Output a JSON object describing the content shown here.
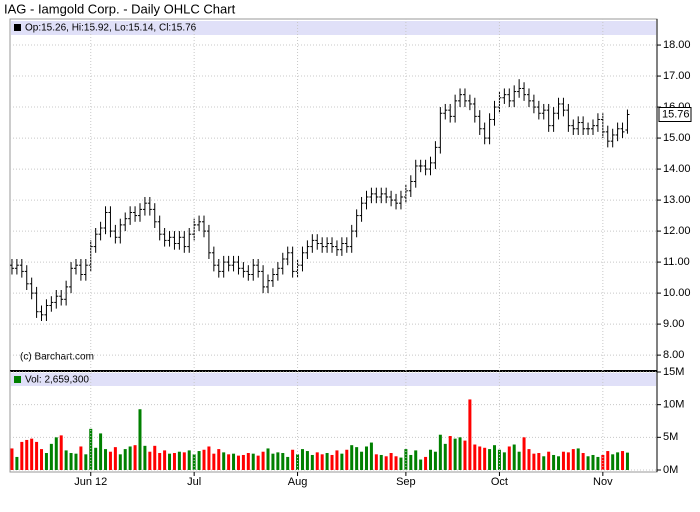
{
  "chart_data": [
    {
      "type": "ohlc",
      "title": "IAG - Iamgold Corp. - Daily OHLC Chart",
      "legend_text": "Op:15.26, Hi:15.92, Lo:15.14, Cl:15.76",
      "annotation": "(c) Barchart.com",
      "color": "#000000",
      "grid": true,
      "xlim": [
        -0.4,
        131
      ],
      "ylim": [
        7.52,
        18.84
      ],
      "yticks": [
        {
          "value": 8,
          "label": "8.00"
        },
        {
          "value": 9,
          "label": "9.00"
        },
        {
          "value": 10,
          "label": "10.00"
        },
        {
          "value": 11,
          "label": "11.00"
        },
        {
          "value": 12,
          "label": "12.00"
        },
        {
          "value": 13,
          "label": "13.00"
        },
        {
          "value": 14,
          "label": "14.00"
        },
        {
          "value": 15,
          "label": "15.00"
        },
        {
          "value": 16,
          "label": "16.00"
        },
        {
          "value": 17,
          "label": "17.00"
        },
        {
          "value": 18,
          "label": "18.00"
        }
      ],
      "open": [
        10.9,
        10.8,
        10.9,
        10.7,
        10.3,
        10.0,
        9.4,
        9.3,
        9.6,
        9.7,
        9.9,
        9.8,
        10.2,
        10.8,
        10.9,
        10.6,
        10.9,
        11.5,
        11.9,
        12.1,
        12.6,
        12.0,
        11.8,
        12.2,
        12.4,
        12.6,
        12.5,
        12.7,
        12.9,
        12.7,
        12.3,
        11.9,
        11.7,
        11.8,
        11.6,
        11.8,
        11.5,
        11.9,
        12.2,
        12.3,
        12.0,
        11.3,
        10.9,
        10.7,
        11.0,
        10.9,
        11.0,
        10.8,
        10.7,
        10.6,
        10.9,
        10.7,
        10.2,
        10.4,
        10.6,
        10.8,
        11.1,
        11.3,
        10.7,
        10.9,
        11.3,
        11.5,
        11.7,
        11.6,
        11.5,
        11.6,
        11.5,
        11.4,
        11.6,
        11.5,
        12.0,
        12.5,
        12.9,
        13.1,
        13.2,
        13.1,
        13.2,
        13.1,
        13.0,
        12.9,
        13.1,
        13.3,
        13.6,
        14.1,
        14.1,
        14.0,
        14.2,
        14.7,
        15.8,
        15.9,
        15.7,
        16.2,
        16.4,
        16.2,
        16.1,
        15.7,
        15.3,
        15.0,
        15.6,
        16.0,
        16.3,
        16.4,
        16.2,
        16.5,
        16.6,
        16.4,
        16.2,
        16.0,
        15.8,
        15.9,
        15.4,
        15.8,
        16.1,
        15.9,
        15.4,
        15.3,
        15.5,
        15.3,
        15.3,
        15.4,
        15.6,
        15.2,
        14.9,
        15.1,
        15.3,
        15.26
      ],
      "high": [
        11.1,
        11.1,
        11.1,
        10.9,
        10.5,
        10.2,
        9.6,
        9.8,
        9.9,
        10.1,
        10.1,
        10.4,
        11.0,
        11.1,
        11.1,
        11.1,
        11.7,
        12.1,
        12.3,
        12.8,
        12.8,
        12.2,
        12.4,
        12.6,
        12.8,
        12.8,
        12.9,
        13.1,
        13.1,
        12.9,
        12.5,
        12.1,
        12.0,
        12.0,
        12.0,
        12.0,
        12.1,
        12.4,
        12.5,
        12.5,
        12.2,
        11.5,
        11.1,
        11.2,
        11.2,
        11.2,
        11.2,
        11.0,
        10.9,
        11.1,
        11.1,
        10.9,
        10.6,
        10.8,
        11.0,
        11.3,
        11.5,
        11.5,
        11.1,
        11.5,
        11.7,
        11.9,
        11.9,
        11.8,
        11.8,
        11.8,
        11.7,
        11.8,
        11.8,
        12.2,
        12.7,
        13.1,
        13.3,
        13.4,
        13.4,
        13.4,
        13.4,
        13.3,
        13.2,
        13.3,
        13.5,
        13.8,
        14.3,
        14.3,
        14.3,
        14.4,
        14.9,
        16.0,
        16.1,
        16.1,
        16.4,
        16.6,
        16.6,
        16.4,
        16.3,
        15.9,
        15.5,
        15.8,
        16.2,
        16.5,
        16.6,
        16.6,
        16.7,
        16.9,
        16.8,
        16.6,
        16.4,
        16.2,
        16.1,
        16.1,
        16.0,
        16.3,
        16.3,
        16.1,
        15.6,
        15.7,
        15.7,
        15.5,
        15.6,
        15.8,
        15.8,
        15.4,
        15.3,
        15.5,
        15.5,
        15.92
      ],
      "low": [
        10.6,
        10.6,
        10.5,
        10.1,
        9.8,
        9.2,
        9.1,
        9.1,
        9.4,
        9.5,
        9.6,
        9.6,
        10.0,
        10.6,
        10.4,
        10.4,
        10.7,
        11.3,
        11.7,
        11.9,
        11.8,
        11.6,
        11.6,
        12.0,
        12.2,
        12.3,
        12.3,
        12.5,
        12.5,
        12.1,
        11.7,
        11.5,
        11.5,
        11.4,
        11.4,
        11.3,
        11.3,
        11.7,
        12.0,
        11.8,
        11.1,
        10.7,
        10.5,
        10.5,
        10.7,
        10.7,
        10.6,
        10.5,
        10.4,
        10.4,
        10.5,
        10.0,
        10.0,
        10.2,
        10.4,
        10.6,
        10.9,
        10.5,
        10.5,
        10.7,
        11.1,
        11.3,
        11.4,
        11.3,
        11.3,
        11.3,
        11.2,
        11.2,
        11.3,
        11.3,
        11.8,
        12.3,
        12.7,
        12.9,
        12.9,
        12.9,
        12.9,
        12.8,
        12.7,
        12.7,
        12.9,
        13.1,
        13.4,
        13.9,
        13.8,
        13.8,
        14.0,
        14.5,
        15.6,
        15.5,
        15.5,
        16.0,
        16.0,
        15.9,
        15.5,
        15.1,
        14.8,
        14.8,
        15.4,
        15.8,
        16.1,
        16.0,
        16.0,
        16.3,
        16.2,
        16.0,
        15.8,
        15.6,
        15.6,
        15.2,
        15.2,
        15.6,
        15.7,
        15.2,
        15.1,
        15.1,
        15.1,
        15.1,
        15.1,
        15.2,
        15.0,
        14.7,
        14.7,
        14.9,
        15.0,
        15.14
      ],
      "close": [
        10.8,
        10.9,
        10.7,
        10.3,
        10.0,
        9.4,
        9.3,
        9.6,
        9.7,
        9.9,
        9.8,
        10.2,
        10.8,
        10.9,
        10.6,
        10.9,
        11.5,
        11.9,
        12.1,
        12.6,
        12.0,
        11.8,
        12.2,
        12.4,
        12.6,
        12.5,
        12.7,
        12.9,
        12.7,
        12.3,
        11.9,
        11.7,
        11.8,
        11.6,
        11.8,
        11.5,
        11.9,
        12.2,
        12.3,
        12.0,
        11.3,
        10.9,
        10.7,
        11.0,
        10.9,
        11.0,
        10.8,
        10.7,
        10.6,
        10.9,
        10.7,
        10.2,
        10.4,
        10.6,
        10.8,
        11.1,
        11.3,
        10.7,
        10.9,
        11.3,
        11.5,
        11.7,
        11.6,
        11.5,
        11.6,
        11.5,
        11.4,
        11.6,
        11.5,
        12.0,
        12.5,
        12.9,
        13.1,
        13.2,
        13.1,
        13.2,
        13.1,
        13.0,
        12.9,
        13.1,
        13.3,
        13.6,
        14.1,
        14.1,
        14.0,
        14.2,
        14.7,
        15.8,
        15.9,
        15.7,
        16.2,
        16.4,
        16.2,
        16.1,
        15.7,
        15.3,
        15.0,
        15.6,
        16.0,
        16.3,
        16.4,
        16.2,
        16.5,
        16.6,
        16.4,
        16.2,
        16.0,
        15.8,
        15.9,
        15.4,
        15.8,
        16.1,
        15.9,
        15.4,
        15.3,
        15.5,
        15.3,
        15.3,
        15.4,
        15.6,
        15.2,
        14.9,
        15.1,
        15.3,
        15.2,
        15.76
      ]
    },
    {
      "type": "bar",
      "legend_text": "Vol: 2,659,300",
      "up_color": "#008000",
      "down_color": "#ff0000",
      "grid": true,
      "xlim": [
        -0.4,
        131
      ],
      "ylim": [
        0,
        15
      ],
      "yticks": [
        {
          "value": 0,
          "label": "0M"
        },
        {
          "value": 5,
          "label": "5M"
        },
        {
          "value": 10,
          "label": "10M"
        },
        {
          "value": 15,
          "label": "15M"
        }
      ],
      "xticks": [
        {
          "value": 16,
          "label": "Jun 12"
        },
        {
          "value": 37,
          "label": "Jul"
        },
        {
          "value": 58,
          "label": "Aug"
        },
        {
          "value": 80,
          "label": "Sep"
        },
        {
          "value": 99,
          "label": "Oct"
        },
        {
          "value": 120,
          "label": "Nov"
        }
      ],
      "values": [
        3.3,
        2.0,
        4.3,
        4.6,
        4.8,
        4.3,
        3.2,
        2.6,
        4.0,
        5.0,
        5.3,
        3.0,
        2.6,
        2.5,
        3.6,
        2.4,
        6.3,
        3.4,
        5.6,
        3.2,
        2.8,
        3.5,
        2.4,
        3.2,
        3.6,
        3.8,
        9.3,
        3.7,
        2.8,
        3.7,
        2.6,
        3.0,
        2.5,
        2.6,
        2.8,
        2.7,
        3.0,
        2.4,
        2.9,
        3.1,
        3.6,
        2.5,
        3.2,
        2.7,
        2.4,
        2.5,
        2.2,
        2.3,
        2.6,
        2.5,
        2.2,
        2.8,
        3.3,
        2.5,
        2.7,
        2.6,
        2.0,
        3.1,
        2.4,
        3.2,
        2.9,
        2.3,
        2.7,
        2.4,
        2.6,
        2.3,
        3.0,
        2.5,
        3.1,
        3.8,
        3.5,
        2.8,
        3.6,
        4.2,
        2.4,
        2.3,
        2.1,
        2.6,
        2.1,
        1.9,
        3.2,
        2.3,
        3.0,
        1.6,
        2.0,
        3.1,
        2.8,
        5.4,
        4.0,
        5.2,
        4.8,
        5.0,
        4.5,
        10.8,
        3.9,
        3.6,
        3.4,
        3.2,
        3.8,
        3.1,
        2.7,
        3.6,
        3.9,
        2.8,
        5.0,
        3.2,
        2.5,
        2.6,
        2.1,
        2.8,
        2.3,
        2.1,
        2.8,
        2.7,
        3.2,
        3.3,
        2.6,
        2.1,
        2.3,
        2.0,
        2.3,
        2.9,
        2.4,
        2.7,
        2.9,
        2.66
      ]
    }
  ]
}
